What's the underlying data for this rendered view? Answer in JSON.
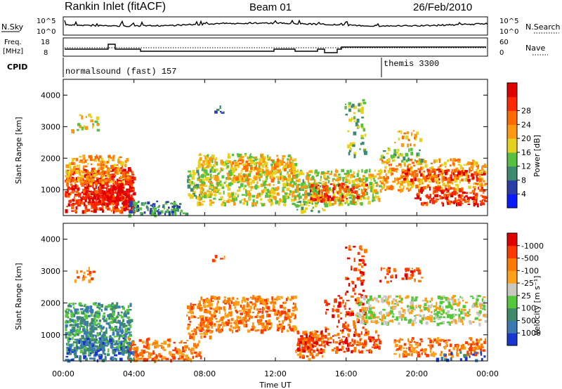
{
  "header": {
    "station": "Rankin Inlet (fitACF)",
    "beam": "Beam 01",
    "date": "26/Feb/2010"
  },
  "colors": {
    "line": "#000000",
    "background": "#ffffff"
  },
  "top_panel": {
    "left_label": "N.Sky",
    "left_tick_top": "10^5",
    "left_tick_bottom": "10^0",
    "right_label": "N.Search",
    "right_tick_top": "10^5",
    "right_tick_bottom": "10^0"
  },
  "freq_panel": {
    "left_label_line1": "Freq.",
    "left_label_line2": "[MHz]",
    "left_tick_top": "18",
    "left_tick_bottom": "8",
    "right_label": "Nave",
    "right_tick_top": "60",
    "right_tick_bottom": "0"
  },
  "cpid_panel": {
    "label": "CPID",
    "mode1": "normalsound (fast) 157",
    "mode2": "themis 3300"
  },
  "x_axis": {
    "label": "Time UT",
    "ticks": [
      "00:00",
      "04:00",
      "08:00",
      "12:00",
      "16:00",
      "20:00",
      "00:00"
    ]
  },
  "chart_data": [
    {
      "type": "heatmap",
      "name": "power",
      "ylabel": "Slant Range [km]",
      "ylim": [
        180,
        4500
      ],
      "yticks": [
        "1000",
        "2000",
        "3000",
        "4000"
      ],
      "colorbar": {
        "label": "Power [dB]",
        "ticks": [
          "4",
          "8",
          "12",
          "16",
          "20",
          "24",
          "28"
        ],
        "colors": [
          "#0a1aff",
          "#2a3ea8",
          "#3c8a70",
          "#58c040",
          "#e6d21e",
          "#ff9a10",
          "#ff6a00",
          "#ff2a00",
          "#e00000"
        ]
      }
    },
    {
      "type": "heatmap",
      "name": "velocity",
      "ylabel": "Slant Range [km]",
      "ylim": [
        180,
        4500
      ],
      "yticks": [
        "1000",
        "2000",
        "3000",
        "4000"
      ],
      "colorbar": {
        "label": "Velocity [m s⁻¹]",
        "ticks": [
          "1000",
          "500",
          "100",
          "25",
          "-25",
          "-100",
          "-500",
          "-1000"
        ],
        "colors": [
          "#1a36d0",
          "#3a7ab0",
          "#3f8a6a",
          "#54c83a",
          "#c8c8c0",
          "#ffa018",
          "#ff7a00",
          "#ff3a00",
          "#e00000"
        ]
      }
    }
  ]
}
